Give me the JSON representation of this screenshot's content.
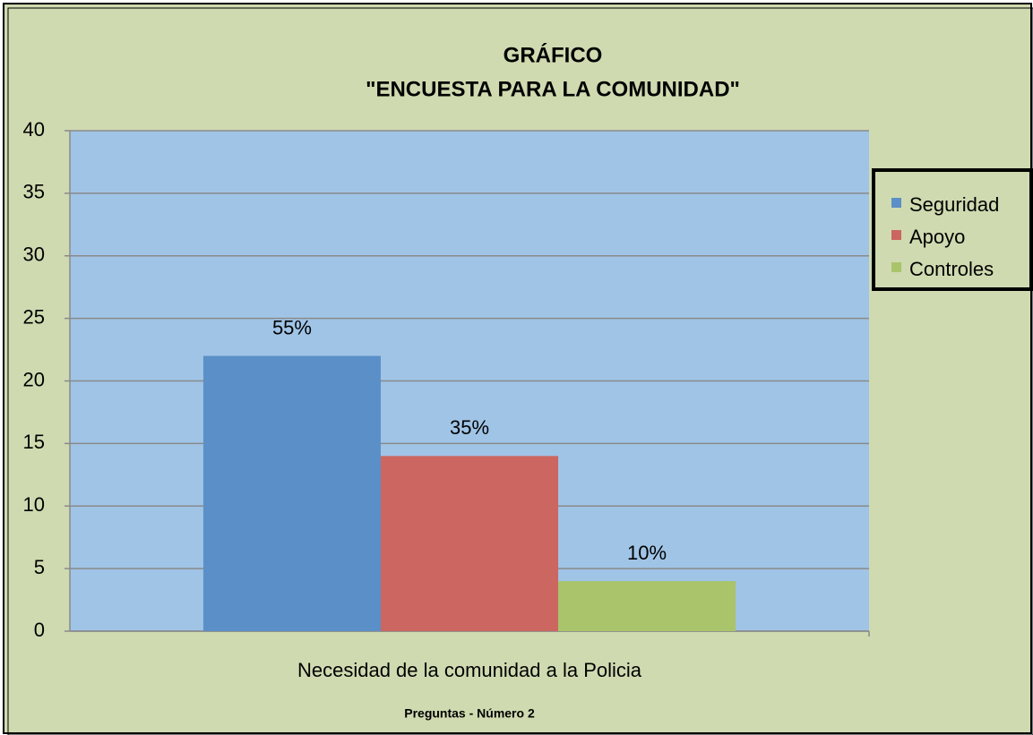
{
  "chart_data": {
    "type": "bar",
    "title": "GRÁFICO",
    "subtitle": "\"ENCUESTA PARA LA COMUNIDAD\"",
    "x_label": "Preguntas - Número 2",
    "categories": [
      "Necesidad de la comunidad a la Policia"
    ],
    "series": [
      {
        "name": "Seguridad",
        "color": "#5b8fc7",
        "values": [
          22
        ],
        "value_labels": [
          "55%"
        ]
      },
      {
        "name": "Apoyo",
        "color": "#cc6660",
        "values": [
          14
        ],
        "value_labels": [
          "35%"
        ]
      },
      {
        "name": "Controles",
        "color": "#a9c46a",
        "values": [
          4
        ],
        "value_labels": [
          "10%"
        ]
      }
    ],
    "ylim": [
      0,
      40
    ],
    "yticks": [
      0,
      5,
      10,
      15,
      20,
      25,
      30,
      35,
      40
    ],
    "grid": true,
    "legend": "right"
  }
}
